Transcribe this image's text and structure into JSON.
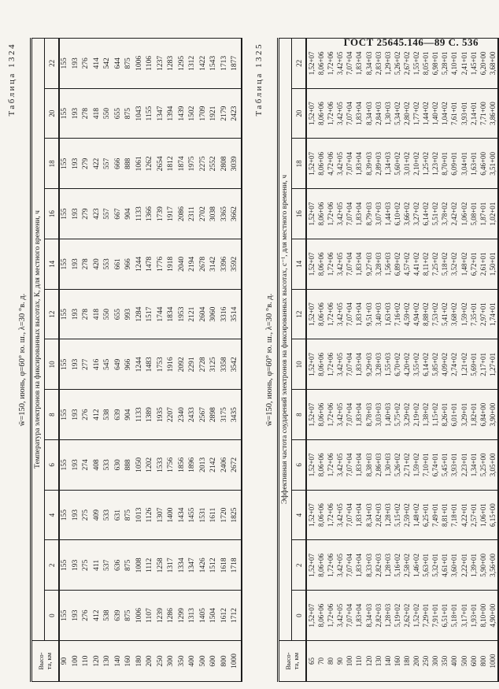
{
  "page": {
    "header": "ГОСТ 25645.146—89  С. 536"
  },
  "tables": [
    {
      "label": "Таблица 1324",
      "condition": "w̄=150, июнь, φ=60° ю. ш., λ=30 °в. д.",
      "height_header_line1": "Высо-",
      "height_header_line2": "та, км",
      "span_header": "Температура электронов на фиксированных высотах, К, для местного времени, ч",
      "heights": [
        "90",
        "100",
        "110",
        "120",
        "130",
        "140",
        "160",
        "180",
        "200",
        "250",
        "300",
        "350",
        "400",
        "500",
        "600",
        "800",
        "1000"
      ],
      "hours_data": [
        {
          "hour": "0",
          "values": [
            "155",
            "193",
            "276",
            "412",
            "538",
            "639",
            "875",
            "1006",
            "1107",
            "1239",
            "1286",
            "1299",
            "1313",
            "1405",
            "1504",
            "1612",
            "1712"
          ]
        },
        {
          "hour": "2",
          "values": [
            "155",
            "193",
            "275",
            "411",
            "537",
            "636",
            "875",
            "1008",
            "1112",
            "1258",
            "1317",
            "1334",
            "1347",
            "1426",
            "1512",
            "1618",
            "1718"
          ]
        },
        {
          "hour": "4",
          "values": [
            "155",
            "193",
            "275",
            "409",
            "533",
            "631",
            "875",
            "1013",
            "1126",
            "1307",
            "1400",
            "1434",
            "1455",
            "1531",
            "1611",
            "1720",
            "1825"
          ]
        },
        {
          "hour": "6",
          "values": [
            "155",
            "193",
            "274",
            "408",
            "533",
            "630",
            "888",
            "1050",
            "1202",
            "1533",
            "1756",
            "1856",
            "1896",
            "2013",
            "2142",
            "2406",
            "2672"
          ]
        },
        {
          "hour": "8",
          "values": [
            "155",
            "193",
            "276",
            "412",
            "538",
            "639",
            "904",
            "1133",
            "1389",
            "1935",
            "2207",
            "2340",
            "2433",
            "2567",
            "2898",
            "3175",
            "3435"
          ]
        },
        {
          "hour": "10",
          "values": [
            "155",
            "193",
            "277",
            "416",
            "545",
            "649",
            "966",
            "1244",
            "1483",
            "1753",
            "1916",
            "2092",
            "2291",
            "2728",
            "3125",
            "3358",
            "3542"
          ]
        },
        {
          "hour": "12",
          "values": [
            "155",
            "193",
            "278",
            "418",
            "550",
            "655",
            "993",
            "1284",
            "1517",
            "1744",
            "1834",
            "1953",
            "2121",
            "2604",
            "3060",
            "3316",
            "3514"
          ]
        },
        {
          "hour": "14",
          "values": [
            "155",
            "193",
            "278",
            "420",
            "553",
            "661",
            "966",
            "1244",
            "1478",
            "1776",
            "1918",
            "2040",
            "2194",
            "2678",
            "3142",
            "3396",
            "3592"
          ]
        },
        {
          "hour": "16",
          "values": [
            "155",
            "193",
            "279",
            "423",
            "557",
            "667",
            "904",
            "1133",
            "1366",
            "1739",
            "1917",
            "2086",
            "2311",
            "2702",
            "3038",
            "3365",
            "3662"
          ]
        },
        {
          "hour": "18",
          "values": [
            "155",
            "193",
            "279",
            "422",
            "557",
            "666",
            "888",
            "1061",
            "1262",
            "2654",
            "1812",
            "1874",
            "1975",
            "2275",
            "2552",
            "2808",
            "3039"
          ]
        },
        {
          "hour": "20",
          "values": [
            "155",
            "193",
            "278",
            "418",
            "550",
            "655",
            "875",
            "1043",
            "1155",
            "1347",
            "1394",
            "1439",
            "1502",
            "1709",
            "1921",
            "2179",
            "2423"
          ]
        },
        {
          "hour": "22",
          "values": [
            "155",
            "193",
            "276",
            "414",
            "542",
            "644",
            "875",
            "1006",
            "1106",
            "1237",
            "1283",
            "1295",
            "1312",
            "1422",
            "1543",
            "1713",
            "1877"
          ]
        }
      ]
    },
    {
      "label": "Таблица 1325",
      "condition": "w̄=150, июнь, φ=60° ю. ш., λ=30 °в. д.",
      "height_header_line1": "Высо-",
      "height_header_line2": "та, км",
      "span_header": "Эффективная частота соударений электронов на фиксированных высотах, с⁻¹, для местного времени, ч",
      "heights": [
        "65",
        "70",
        "80",
        "90",
        "100",
        "110",
        "120",
        "130",
        "140",
        "160",
        "180",
        "200",
        "250",
        "300",
        "350",
        "400",
        "500",
        "600",
        "800",
        "1000"
      ],
      "hours_data": [
        {
          "hour": "0",
          "values": [
            "1,52+07",
            "8,06+06",
            "1,72+06",
            "3,42+05",
            "7,07+04",
            "1,83+04",
            "8,34+03",
            "2,82+03",
            "1,28+03",
            "5,19+02",
            "2,62+02",
            "1,52+02",
            "7,29+01",
            "7,91+01",
            "6,51+01",
            "5,18+01",
            "3,17+01",
            "1,93+01",
            "8,10+00",
            "4,90+00"
          ]
        },
        {
          "hour": "2",
          "values": [
            "1,52+07",
            "8,06+06",
            "1,72+06",
            "3,42+05",
            "7,07+04",
            "1,83+04",
            "8,33+03",
            "2,82+03",
            "1,28+03",
            "5,16+02",
            "2,58+02",
            "1,46+02",
            "5,63+01",
            "5,32+01",
            "4,61+01",
            "3,60+01",
            "2,22+01",
            "1,39+01",
            "5,90+00",
            "3,56+00"
          ]
        },
        {
          "hour": "4",
          "values": [
            "1,52+07",
            "8,06+06",
            "1,72+06",
            "3,42+05",
            "7,07+04",
            "1,83+04",
            "8,34+03",
            "2,82+03",
            "1,28+03",
            "5,15+02",
            "2,59+02",
            "1,48+02",
            "6,25+01",
            "7,49+01",
            "8,81+01",
            "7,18+01",
            "4,22+01",
            "2,57+01",
            "1,06+01",
            "6,15+00"
          ]
        },
        {
          "hour": "6",
          "values": [
            "1,52+07",
            "8,06+06",
            "1,72+06",
            "3,42+05",
            "7,07+04",
            "1,83+04",
            "8,38+03",
            "2,86+03",
            "1,30+03",
            "5,26+02",
            "2,71+02",
            "1,59+02",
            "7,10+01",
            "6,74+01",
            "5,45+01",
            "3,93+01",
            "2,23+01",
            "1,34+01",
            "5,25+00",
            "3,05+00"
          ]
        },
        {
          "hour": "8",
          "values": [
            "1,52+07",
            "8,06+06",
            "1,72+06",
            "3,42+05",
            "7,07+04",
            "1,83+04",
            "8,78+03",
            "3,03+03",
            "1,40+03",
            "5,75+02",
            "3,29+02",
            "2,19+02",
            "1,38+02",
            "1,15+02",
            "8,26+01",
            "6,01+01",
            "3,29+01",
            "1,82+01",
            "6,84+00",
            "3,90+00"
          ]
        },
        {
          "hour": "10",
          "values": [
            "1,52+07",
            "8,06+06",
            "1,72+06",
            "3,42+05",
            "7,07+04",
            "1,83+04",
            "9,29+03",
            "3,28+03",
            "1,55+03",
            "6,70+02",
            "4,20+02",
            "3,55+02",
            "6,14+02",
            "5,85+02",
            "4,09+02",
            "2,74+02",
            "1,21+02",
            "5,69+01",
            "2,17+01",
            "1,27+01"
          ]
        },
        {
          "hour": "12",
          "values": [
            "1,52+07",
            "8,06+06",
            "1,72+06",
            "3,42+05",
            "7,07+04",
            "1,83+04",
            "9,51+03",
            "3,40+03",
            "1,63+03",
            "7,16+02",
            "4,59+02",
            "4,94+02",
            "8,88+02",
            "7,53+02",
            "5,41+02",
            "3,68+02",
            "1,59+02",
            "7,35+01",
            "2,97+01",
            "1,74+01"
          ]
        },
        {
          "hour": "14",
          "values": [
            "1,52+07",
            "8,06+06",
            "1,72+06",
            "3,42+05",
            "7,07+04",
            "1,83+04",
            "9,27+03",
            "3,28+03",
            "1,56+03",
            "6,89+02",
            "4,57+02",
            "4,41+02",
            "8,11+02",
            "7,25+02",
            "5,18+02",
            "3,52+02",
            "1,48+02",
            "6,72+01",
            "2,61+01",
            "1,50+01"
          ]
        },
        {
          "hour": "16",
          "values": [
            "1,52+07",
            "8,06+06",
            "1,72+06",
            "3,42+05",
            "7,07+04",
            "1,83+04",
            "8,79+03",
            "3,07+03",
            "1,44+03",
            "6,10+02",
            "3,66+02",
            "3,27+02",
            "6,14+02",
            "5,51+02",
            "3,78+02",
            "2,42+02",
            "1,06+02",
            "5,08+01",
            "1,87+01",
            "1,02+01"
          ]
        },
        {
          "hour": "18",
          "values": [
            "1,52+07",
            "8,06+06",
            "4,72+06",
            "3,42+05",
            "7,07+04",
            "1,83+04",
            "8,39+03",
            "2,89+03",
            "1,34+03",
            "5,60+02",
            "3,01+02",
            "2,10+02",
            "1,25+02",
            "1,23+02",
            "8,70+01",
            "6,09+01",
            "3,04+01",
            "1,63+01",
            "6,46+00",
            "3,51+00"
          ]
        },
        {
          "hour": "20",
          "values": [
            "1,52+07",
            "8,06+06",
            "1,72+06",
            "3,42+05",
            "7,07+04",
            "1,83+04",
            "8,34+03",
            "2,84+03",
            "1,30+03",
            "5,34+02",
            "2,80+02",
            "1,77+02",
            "1,44+02",
            "1,40+02",
            "1,04+02",
            "7,61+01",
            "3,93+01",
            "2,14+01",
            "7,71+00",
            "3,86+00"
          ]
        },
        {
          "hour": "22",
          "values": [
            "1,52+07",
            "8,06+06",
            "1,72+06",
            "3,42+05",
            "7,07+04",
            "1,83+04",
            "8,34+03",
            "2,83+03",
            "1,29+03",
            "5,26+02",
            "2,67+02",
            "1,55+02",
            "8,05+01",
            "6,98+01",
            "5,28+01",
            "4,10+01",
            "2,41+01",
            "1,45+01",
            "6,20+00",
            "3,68+00"
          ]
        }
      ]
    }
  ]
}
